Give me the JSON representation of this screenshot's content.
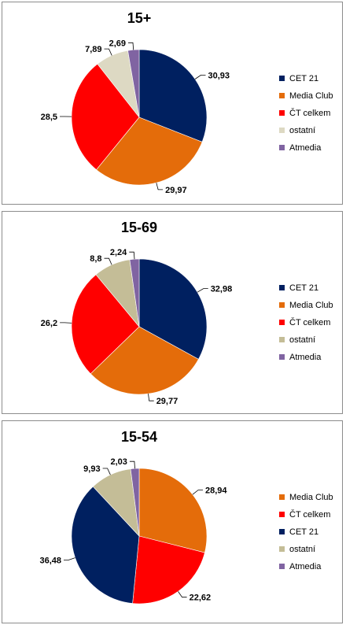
{
  "chart_data": [
    {
      "type": "pie",
      "title": "15+",
      "slices": [
        {
          "name": "CET 21",
          "value": 30.93,
          "label": "30,93",
          "color": "#002060"
        },
        {
          "name": "Media Club",
          "value": 29.97,
          "label": "29,97",
          "color": "#E46C0A"
        },
        {
          "name": "ČT celkem",
          "value": 28.5,
          "label": "28,5",
          "color": "#FF0000"
        },
        {
          "name": "ostatní",
          "value": 7.89,
          "label": "7,89",
          "color": "#DDD9C3"
        },
        {
          "name": "Atmedia",
          "value": 2.69,
          "label": "2,69",
          "color": "#8064A2"
        }
      ],
      "legend": [
        "CET 21",
        "Media Club",
        "ČT celkem",
        "ostatní",
        "Atmedia"
      ],
      "legend_position": "right"
    },
    {
      "type": "pie",
      "title": "15-69",
      "slices": [
        {
          "name": "CET 21",
          "value": 32.98,
          "label": "32,98",
          "color": "#002060"
        },
        {
          "name": "Media Club",
          "value": 29.77,
          "label": "29,77",
          "color": "#E46C0A"
        },
        {
          "name": "ČT celkem",
          "value": 26.2,
          "label": "26,2",
          "color": "#FF0000"
        },
        {
          "name": "ostatní",
          "value": 8.8,
          "label": "8,8",
          "color": "#C4BD97"
        },
        {
          "name": "Atmedia",
          "value": 2.24,
          "label": "2,24",
          "color": "#8064A2"
        }
      ],
      "legend": [
        "CET 21",
        "Media Club",
        "ČT celkem",
        "ostatní",
        "Atmedia"
      ],
      "legend_position": "right"
    },
    {
      "type": "pie",
      "title": "15-54",
      "slices": [
        {
          "name": "Media Club",
          "value": 28.94,
          "label": "28,94",
          "color": "#E46C0A"
        },
        {
          "name": "ČT celkem",
          "value": 22.62,
          "label": "22,62",
          "color": "#FF0000"
        },
        {
          "name": "CET 21",
          "value": 36.48,
          "label": "36,48",
          "color": "#002060"
        },
        {
          "name": "ostatní",
          "value": 9.93,
          "label": "9,93",
          "color": "#C4BD97"
        },
        {
          "name": "Atmedia",
          "value": 2.03,
          "label": "2,03",
          "color": "#8064A2"
        }
      ],
      "legend": [
        "Media Club",
        "ČT celkem",
        "CET 21",
        "ostatní",
        "Atmedia"
      ],
      "legend_position": "right"
    }
  ]
}
